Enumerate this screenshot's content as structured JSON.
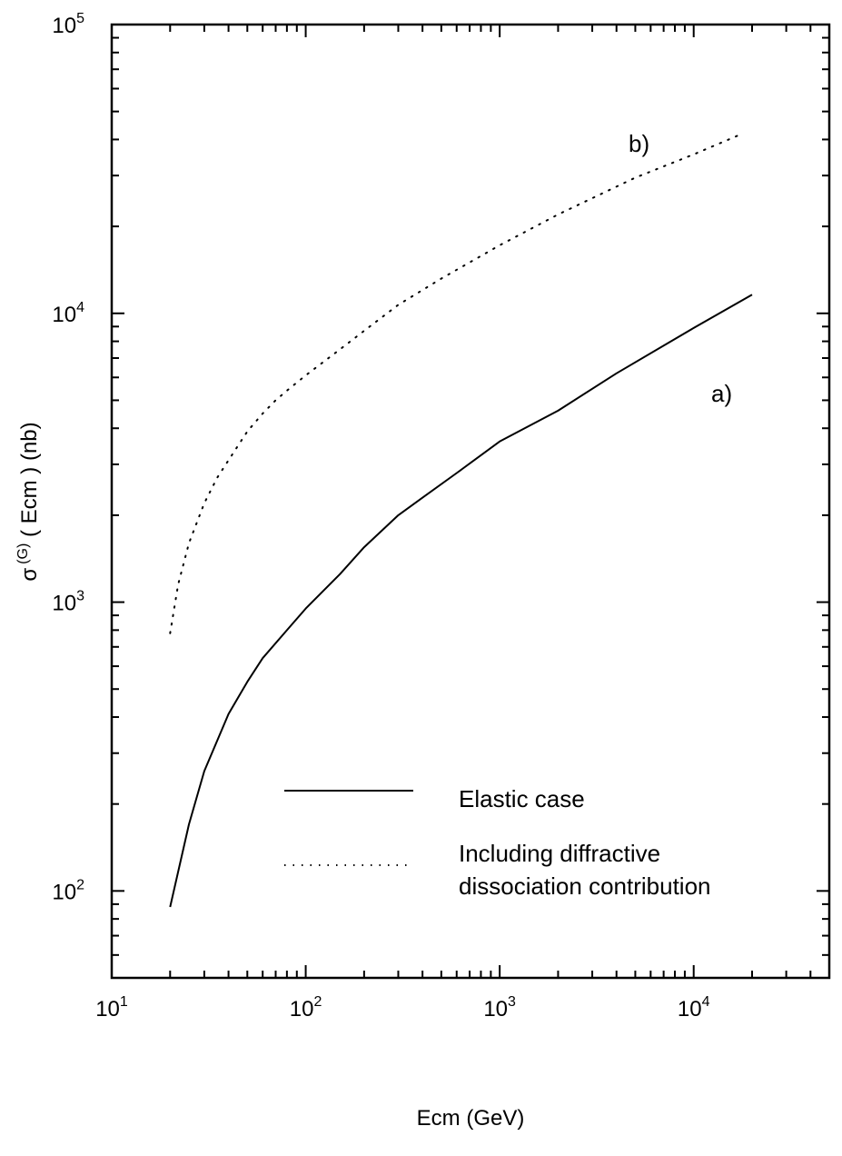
{
  "chart_data": {
    "type": "line",
    "xlabel": "Ecm (GeV)",
    "ylabel_main": "σ",
    "ylabel_sup": "(G)",
    "ylabel_rest": " ( Ecm ) (nb)",
    "xscale": "log",
    "yscale": "log",
    "xlim": [
      10,
      50000
    ],
    "ylim": [
      50,
      100000
    ],
    "x_ticks": [
      {
        "value": 10,
        "base": "10",
        "exp": "1"
      },
      {
        "value": 100,
        "base": "10",
        "exp": "2"
      },
      {
        "value": 1000,
        "base": "10",
        "exp": "3"
      },
      {
        "value": 10000,
        "base": "10",
        "exp": "4"
      }
    ],
    "y_ticks": [
      {
        "value": 100,
        "base": "10",
        "exp": "2"
      },
      {
        "value": 1000,
        "base": "10",
        "exp": "3"
      },
      {
        "value": 10000,
        "base": "10",
        "exp": "4"
      },
      {
        "value": 100000,
        "base": "10",
        "exp": "5"
      }
    ],
    "grid": false,
    "legend_position": "lower-center",
    "series": [
      {
        "name": "Elastic case",
        "label": "a)",
        "style": "solid",
        "x": [
          20,
          25,
          30,
          40,
          50,
          60,
          80,
          100,
          150,
          200,
          300,
          400,
          600,
          1000,
          2000,
          4000,
          10000,
          20000
        ],
        "y": [
          88,
          170,
          260,
          410,
          530,
          640,
          800,
          950,
          1250,
          1550,
          2000,
          2300,
          2800,
          3600,
          4600,
          6200,
          8900,
          11600
        ]
      },
      {
        "name": "Including diffractive dissociation contribution",
        "label": "b)",
        "style": "dotted",
        "x": [
          20,
          22,
          25,
          30,
          35,
          40,
          50,
          60,
          70,
          80,
          100,
          150,
          200,
          300,
          500,
          1000,
          2000,
          5000,
          10000,
          18000
        ],
        "y": [
          780,
          1150,
          1600,
          2200,
          2700,
          3100,
          3900,
          4500,
          5000,
          5400,
          6100,
          7500,
          8700,
          10700,
          13200,
          17200,
          22000,
          29500,
          35500,
          42000
        ]
      }
    ],
    "legend": [
      {
        "text": "Elastic case",
        "style": "solid"
      },
      {
        "text": "Including diffractive",
        "style": "dotted"
      },
      {
        "text": "dissociation contribution",
        "style": "none"
      }
    ]
  }
}
